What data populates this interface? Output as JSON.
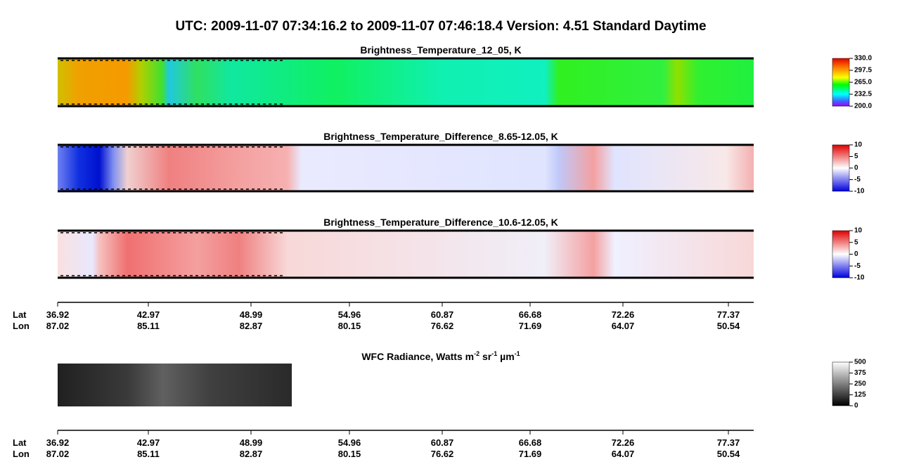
{
  "title": "UTC:  2009-11-07   07:34:16.2  to  2009-11-07   07:46:18.4    Version: 4.51  Standard Daytime",
  "panels": [
    {
      "title": "Brightness_Temperature_12_05, K",
      "colorbar": [
        "330.0",
        "297.5",
        "265.0",
        "232.5",
        "200.0"
      ]
    },
    {
      "title": "Brightness_Temperature_Difference_8.65-12.05, K",
      "colorbar": [
        "10",
        "5",
        "0",
        "-5",
        "-10"
      ]
    },
    {
      "title": "Brightness_Temperature_Difference_10.6-12.05, K",
      "colorbar": [
        "10",
        "5",
        "0",
        "-5",
        "-10"
      ]
    }
  ],
  "axis": {
    "lat_label": "Lat",
    "lon_label": "Lon",
    "lat": [
      "36.92",
      "42.97",
      "48.99",
      "54.96",
      "60.87",
      "66.68",
      "72.26",
      "77.37"
    ],
    "lon": [
      "87.02",
      "85.11",
      "82.87",
      "80.15",
      "76.62",
      "71.69",
      "64.07",
      "50.54"
    ]
  },
  "wfc": {
    "title_parts": [
      "WFC Radiance, Watts m",
      "-2",
      " sr",
      "-1",
      " µm",
      "-1"
    ],
    "colorbar": [
      "500",
      "375",
      "250",
      "125",
      "0"
    ]
  }
}
